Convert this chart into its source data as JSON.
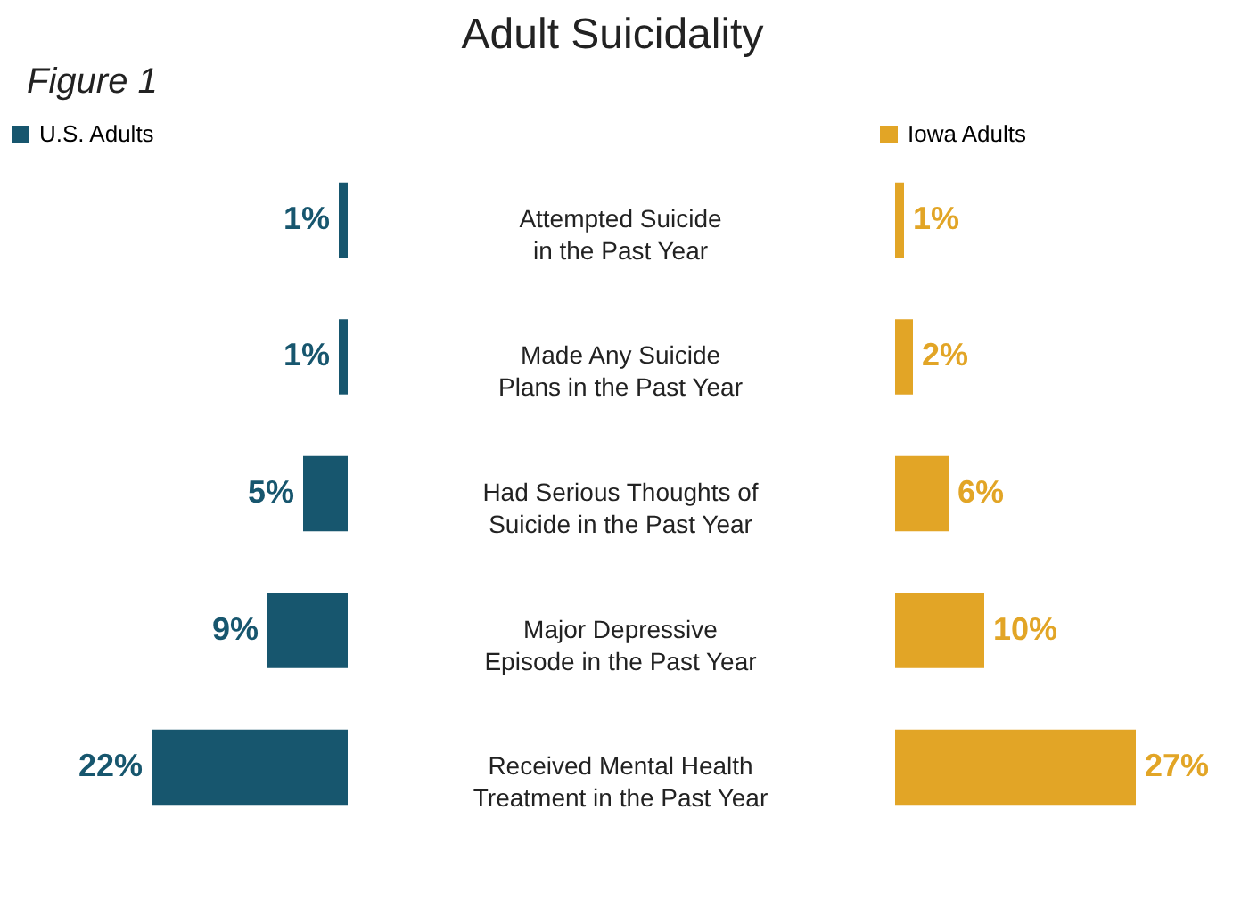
{
  "chart_data": [
    {
      "type": "bar",
      "orientation": "horizontal",
      "title": "Adult Suicidality",
      "annotations": [
        "Figure 1"
      ],
      "legend": "top",
      "categories": [
        "Attempted Suicide in the Past Year",
        "Made Any Suicide Plans in the Past Year",
        "Had Serious Thoughts of Suicide in the Past Year",
        "Major Depressive Episode in the Past Year",
        "Received Mental Health Treatment in the Past Year"
      ],
      "series": [
        {
          "name": "U.S. Adults",
          "color": "#17566e",
          "values": [
            1,
            1,
            5,
            9,
            22
          ],
          "value_labels": [
            "1%",
            "1%",
            "5%",
            "9%",
            "22%"
          ]
        }
      ]
    },
    {
      "type": "bar",
      "orientation": "horizontal",
      "legend": "top",
      "categories": [
        null,
        null,
        null,
        null,
        null
      ],
      "series": [
        {
          "name": "Iowa Adults",
          "color": "#e2a526",
          "values": [
            1,
            2,
            6,
            10,
            27
          ],
          "value_labels": [
            "1%",
            "2%",
            "6%",
            "10%",
            "27%"
          ]
        }
      ]
    }
  ]
}
